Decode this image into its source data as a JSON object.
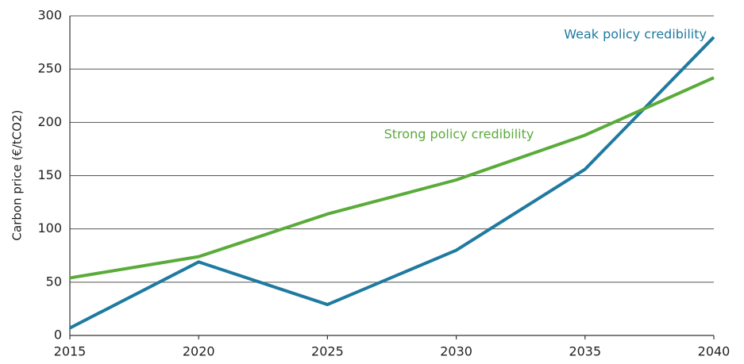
{
  "chart_data": {
    "type": "line",
    "y_label": "Carbon price (€/tCO2)",
    "x": [
      2015,
      2020,
      2025,
      2030,
      2035,
      2040
    ],
    "series": [
      {
        "name": "Weak policy credibility",
        "color": "#1f7aa0",
        "values": [
          7,
          69,
          29,
          80,
          156,
          280
        ]
      },
      {
        "name": "Strong policy credibility",
        "color": "#5aab3a",
        "values": [
          54,
          74,
          114,
          146,
          188,
          242
        ]
      }
    ],
    "xlim": [
      2015,
      2040
    ],
    "xticks": [
      2015,
      2020,
      2025,
      2030,
      2035,
      2040
    ],
    "ylim": [
      0,
      300
    ],
    "yticks": [
      0,
      50,
      100,
      150,
      200,
      250,
      300
    ],
    "grid": true
  }
}
